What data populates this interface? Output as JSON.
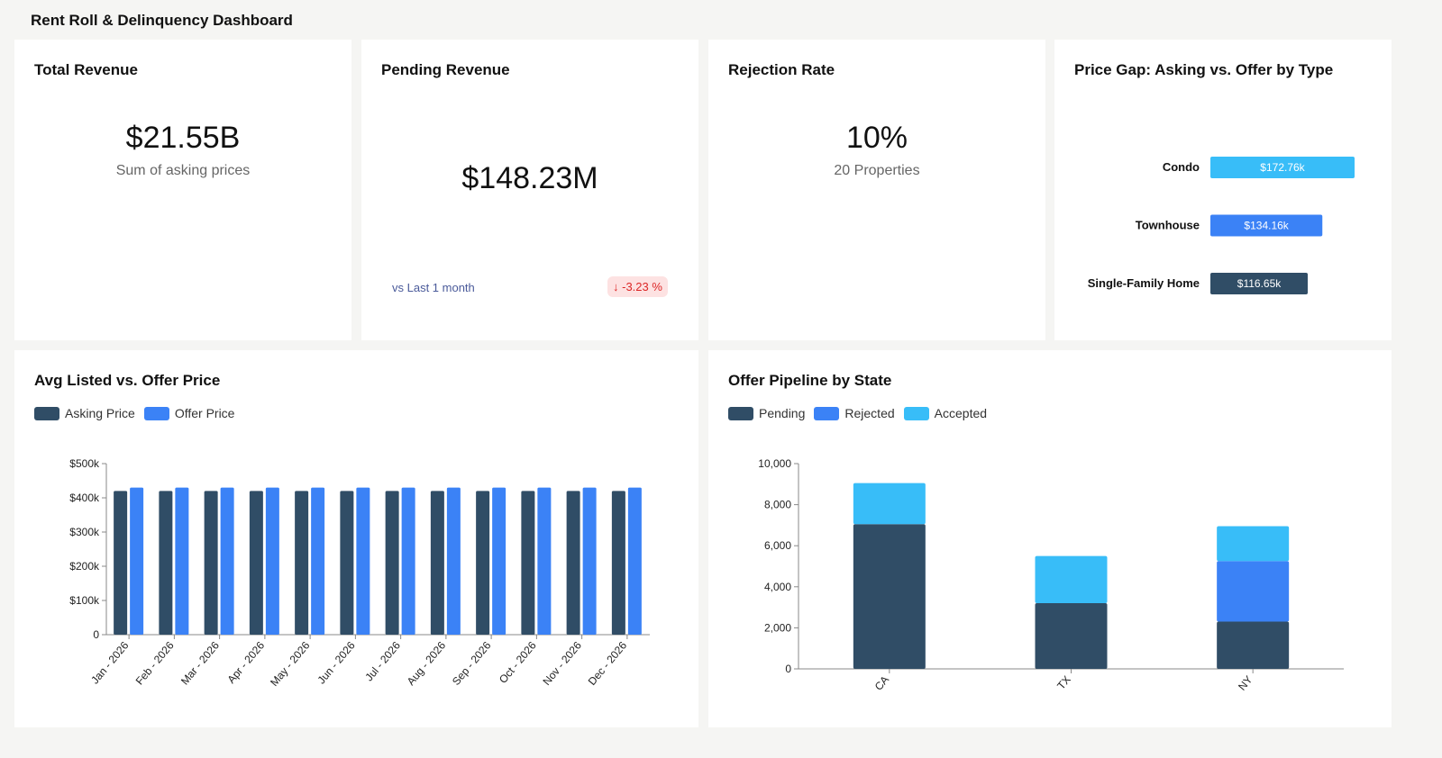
{
  "title": "Rent Roll & Delinquency Dashboard",
  "kpis": {
    "total_revenue": {
      "title": "Total Revenue",
      "value": "$21.55B",
      "subtitle": "Sum of asking prices"
    },
    "pending_revenue": {
      "title": "Pending Revenue",
      "value": "$148.23M",
      "comparison": "vs Last 1 month",
      "delta": "↓ -3.23 %"
    },
    "rejection_rate": {
      "title": "Rejection Rate",
      "value": "10%",
      "subtitle": "20 Properties"
    }
  },
  "colors": {
    "dark": "#304d66",
    "blue": "#3b82f6",
    "sky": "#38bdf8",
    "delta_bg": "#fde2e2",
    "delta_text": "#dc2626"
  },
  "chart_data": [
    {
      "type": "bar",
      "title": "Price Gap: Asking vs. Offer by Type",
      "orientation": "horizontal",
      "categories": [
        "Condo",
        "Townhouse",
        "Single-Family Home"
      ],
      "values": [
        172.76,
        134.16,
        116.65
      ],
      "labels": [
        "$172.76k",
        "$134.16k",
        "$116.65k"
      ],
      "unit": "$k"
    },
    {
      "type": "bar",
      "title": "Avg Listed vs. Offer Price",
      "categories": [
        "Jan - 2026",
        "Feb - 2026",
        "Mar - 2026",
        "Apr - 2026",
        "May - 2026",
        "Jun - 2026",
        "Jul - 2026",
        "Aug - 2026",
        "Sep - 2026",
        "Oct - 2026",
        "Nov - 2026",
        "Dec - 2026"
      ],
      "series": [
        {
          "name": "Asking Price",
          "values": [
            420000,
            420000,
            420000,
            420000,
            420000,
            420000,
            420000,
            420000,
            420000,
            420000,
            420000,
            420000
          ]
        },
        {
          "name": "Offer Price",
          "values": [
            430000,
            430000,
            430000,
            430000,
            430000,
            430000,
            430000,
            430000,
            430000,
            430000,
            430000,
            430000
          ]
        }
      ],
      "ylim": [
        0,
        500000
      ],
      "yticks": [
        "0",
        "$100k",
        "$200k",
        "$300k",
        "$400k",
        "$500k"
      ],
      "legend": "top-left"
    },
    {
      "type": "bar",
      "stacked": true,
      "title": "Offer Pipeline by State",
      "categories": [
        "CA",
        "TX",
        "NY"
      ],
      "series": [
        {
          "name": "Pending",
          "values": [
            7050,
            3200,
            2300
          ]
        },
        {
          "name": "Rejected",
          "values": [
            0,
            0,
            2950
          ]
        },
        {
          "name": "Accepted",
          "values": [
            2000,
            2300,
            1700
          ]
        }
      ],
      "ylim": [
        0,
        10000
      ],
      "yticks": [
        "0",
        "2,000",
        "4,000",
        "6,000",
        "8,000",
        "10,000"
      ],
      "legend": "top-left"
    }
  ]
}
